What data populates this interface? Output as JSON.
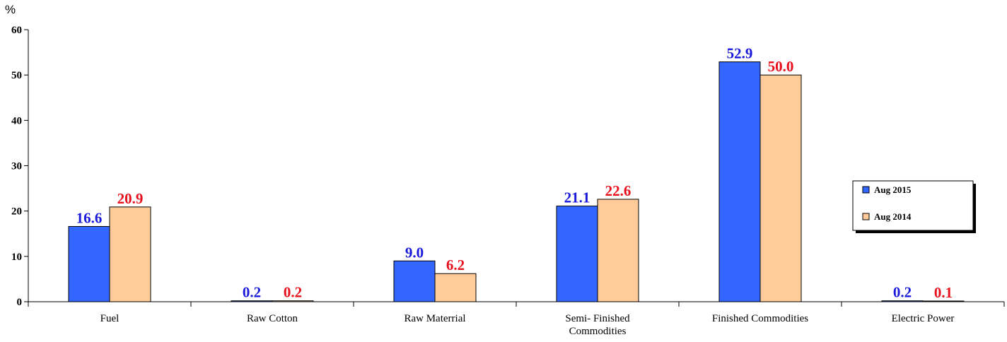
{
  "chart_data": {
    "type": "bar",
    "ylabel": "%",
    "ylim": [
      0,
      60
    ],
    "yticks": [
      0,
      10,
      20,
      30,
      40,
      50,
      60
    ],
    "categories": [
      [
        "Fuel"
      ],
      [
        "Raw Cotton"
      ],
      [
        "Raw Materrial"
      ],
      [
        "Semi- Finished",
        "Commodities"
      ],
      [
        "Finished Commodities"
      ],
      [
        "Electric Power"
      ]
    ],
    "series": [
      {
        "name": "Aug 2015",
        "color": "#3366ff",
        "label_color": "#1a1adb",
        "values": [
          16.6,
          0.2,
          9.0,
          21.1,
          52.9,
          0.2
        ]
      },
      {
        "name": "Aug 2014",
        "color": "#ffcc99",
        "label_color": "#e8101c",
        "values": [
          20.9,
          0.2,
          6.2,
          22.6,
          50.0,
          0.1
        ]
      }
    ],
    "legend_position": "right"
  }
}
